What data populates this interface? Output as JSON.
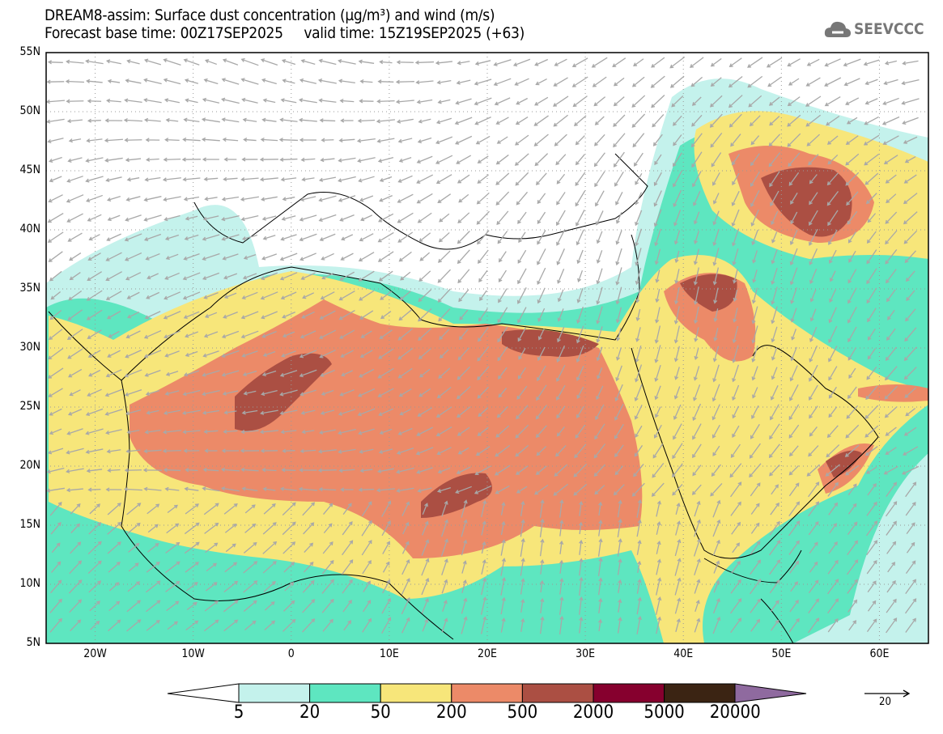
{
  "header": {
    "title_line1": "DREAM8-assim: Surface dust concentration (µg/m³) and wind (m/s)",
    "title_line2": "Forecast base time: 00Z17SEP2025     valid time: 15Z19SEP2025 (+63)",
    "logo_text": "SEEVCCC"
  },
  "axes": {
    "lat_labels": [
      "55N",
      "50N",
      "45N",
      "40N",
      "35N",
      "30N",
      "25N",
      "20N",
      "15N",
      "10N",
      "5N"
    ],
    "lat_values": [
      55,
      50,
      45,
      40,
      35,
      30,
      25,
      20,
      15,
      10,
      5
    ],
    "lon_labels": [
      "20W",
      "10W",
      "0",
      "10E",
      "20E",
      "30E",
      "40E",
      "50E",
      "60E"
    ],
    "lon_values": [
      -20,
      -10,
      0,
      10,
      20,
      30,
      40,
      50,
      60
    ],
    "lon_range": [
      -25,
      65
    ],
    "lat_range": [
      5,
      55
    ]
  },
  "colorbar": {
    "labels": [
      "5",
      "20",
      "50",
      "200",
      "500",
      "2000",
      "5000",
      "20000"
    ],
    "colors": [
      "#c4f2ec",
      "#5ee6c0",
      "#f7e67a",
      "#ec8a68",
      "#ab4f43",
      "#86002e",
      "#3b2413",
      "#8f6a9f"
    ]
  },
  "reference_vector": {
    "label": "20"
  }
}
